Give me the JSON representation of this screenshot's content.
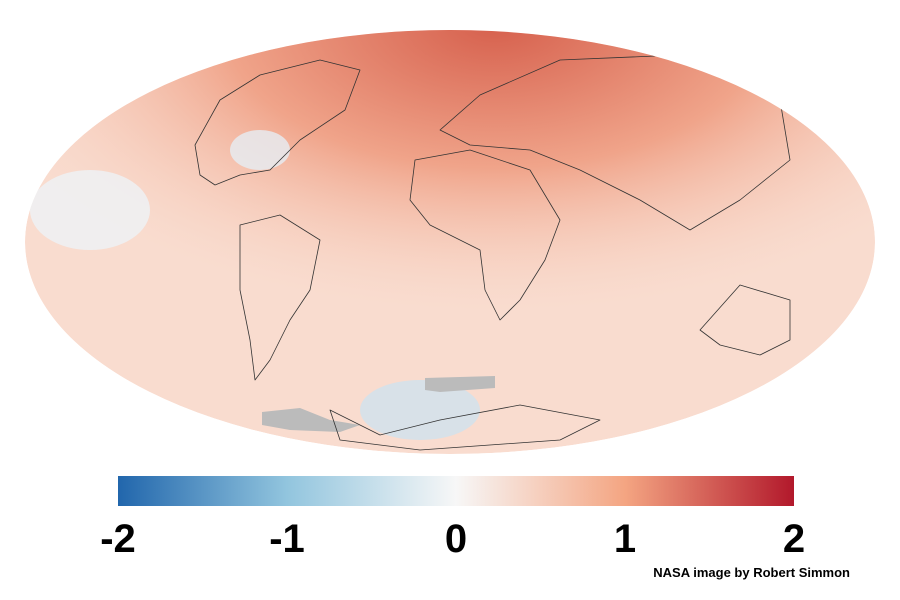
{
  "colorbar": {
    "min": -2,
    "max": 2,
    "ticks": [
      -2,
      -1,
      0,
      1,
      2
    ],
    "colors": [
      "#2166ac",
      "#92c5de",
      "#f7f7f7",
      "#f4a582",
      "#b2182b"
    ]
  },
  "credit": "NASA image by Robert Simmon"
}
